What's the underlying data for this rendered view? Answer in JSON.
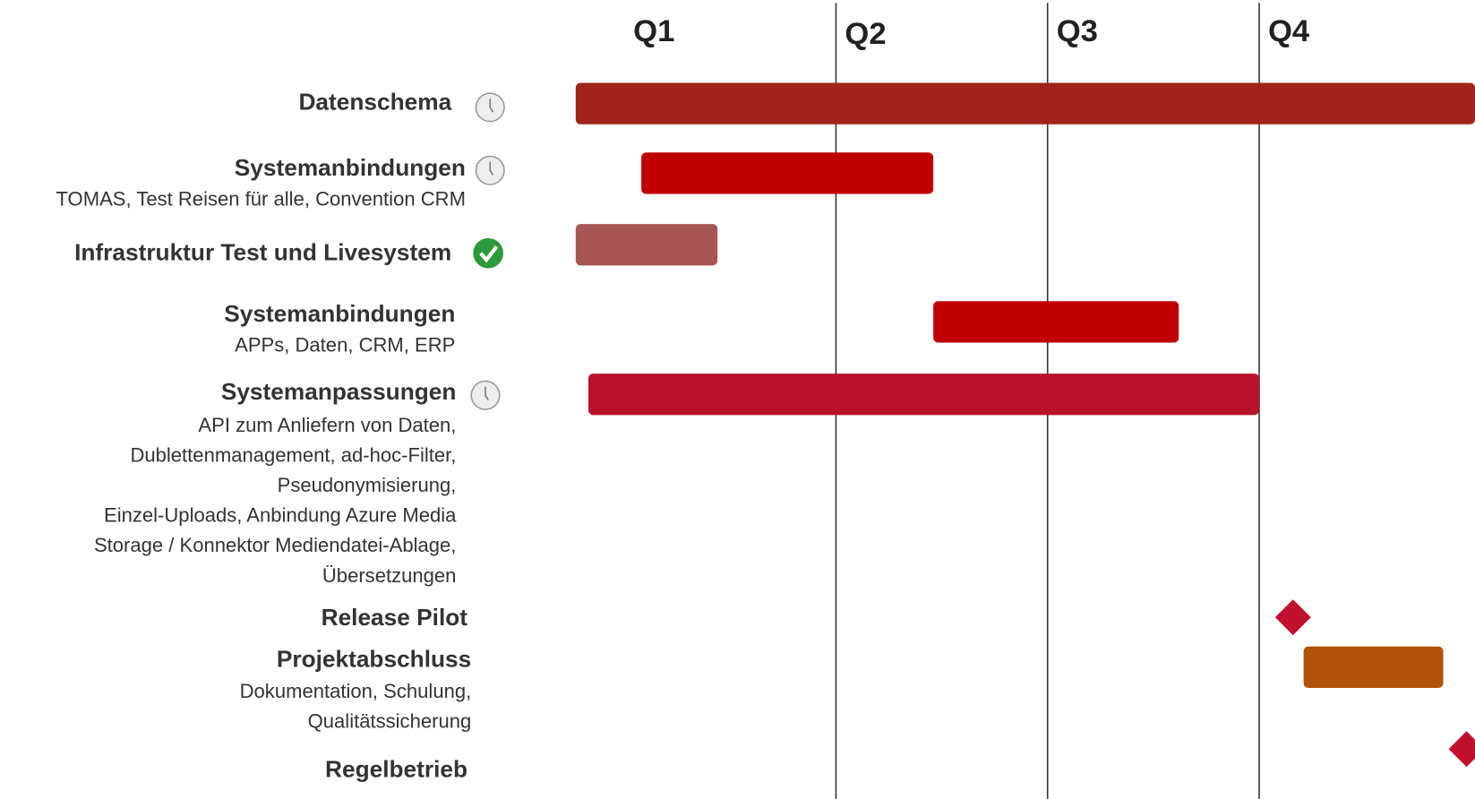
{
  "chart_data": {
    "type": "gantt",
    "categories": [
      "Q1",
      "Q2",
      "Q3",
      "Q4"
    ],
    "xlim": [
      -0.23,
      4.02
    ],
    "grid_lines": [
      1,
      2,
      3
    ],
    "tasks": [
      {
        "name": "Datenschema",
        "start": -0.23,
        "end": 4.02,
        "color": "#a0241a"
      },
      {
        "name": "Systemanbindungen",
        "description": [
          "TOMAS, Test Reisen für alle, Convention CRM"
        ],
        "start": 0.08,
        "end": 1.46,
        "color": "#c00000"
      },
      {
        "name": "Infrastruktur Test und Livesystem",
        "start": -0.23,
        "end": 0.44,
        "color": "#a85555"
      },
      {
        "name": "Systemanbindungen",
        "description": [
          "APPs, Daten, CRM, ERP"
        ],
        "start": 1.46,
        "end": 2.62,
        "color": "#c00000"
      },
      {
        "name": "Systemanpassungen",
        "description": [
          "API zum Anliefern von Daten,",
          "Dublettenmanagement, ad-hoc-Filter,",
          "Pseudonymisierung,",
          "Einzel-Uploads, Anbindung Azure Media",
          "Storage / Konnektor Mediendatei-Ablage,",
          "Übersetzungen"
        ],
        "start": -0.17,
        "end": 3.0,
        "color": "#b8112b"
      },
      {
        "name": "Release Pilot",
        "milestone": 3.16,
        "color": "#c0102e"
      },
      {
        "name": "Projektabschluss",
        "description": [
          "Dokumentation, Schulung,",
          "Qualitätssicherung"
        ],
        "start": 3.21,
        "end": 3.87,
        "color": "#b0520a"
      },
      {
        "name": "Regelbetrieb",
        "milestone": 3.98,
        "color": "#c0102e"
      }
    ],
    "annotations": [
      "V"
    ]
  }
}
